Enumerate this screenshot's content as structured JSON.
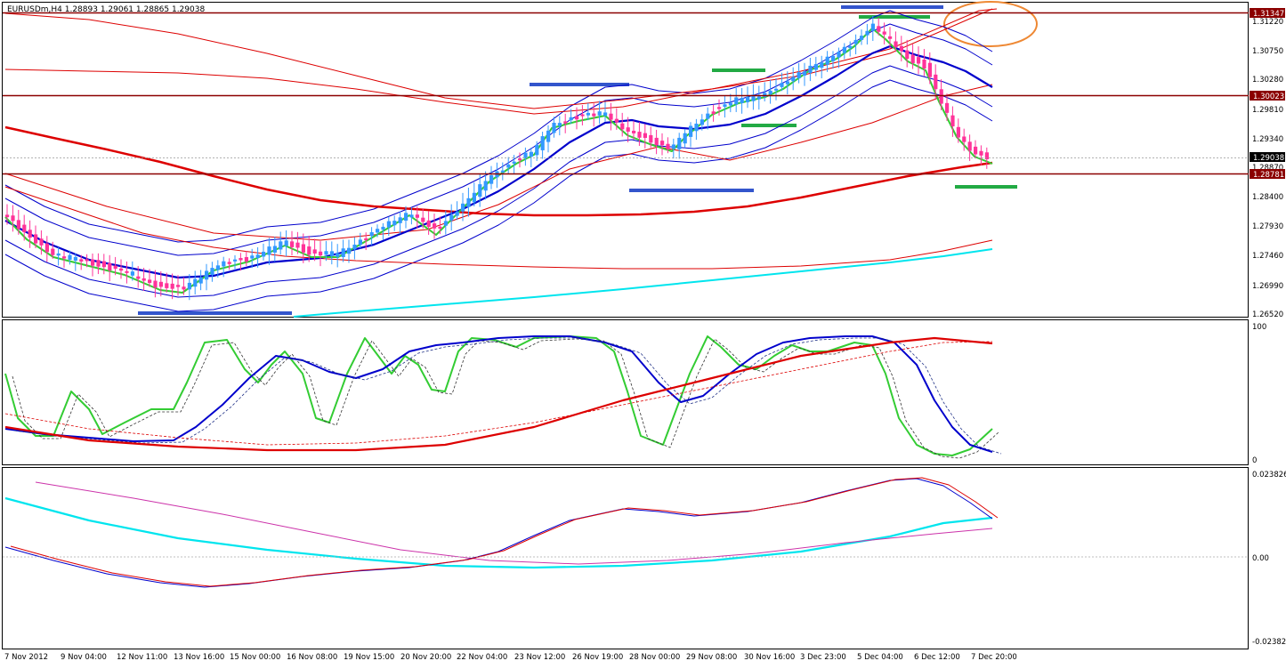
{
  "header": {
    "symbol_info": "EURUSDm,H4  1.28893 1.29061 1.28865 1.29038"
  },
  "main_panel": {
    "price_labels": [
      "1.31220",
      "1.30750",
      "1.30280",
      "1.29810",
      "1.29340",
      "1.28870",
      "1.28400",
      "1.27930",
      "1.27460",
      "1.26990",
      "1.26520"
    ],
    "hlines": [
      {
        "label": "1.31347",
        "color": "#8b0000"
      },
      {
        "label": "1.30023",
        "color": "#8b0000"
      },
      {
        "label": "1.28781",
        "color": "#8b0000"
      }
    ],
    "current_price": "1.29038"
  },
  "stoch_panel": {
    "labels": [
      "100",
      "0"
    ]
  },
  "macd_panel": {
    "labels": [
      "0.023826",
      "0.00",
      "-0.02382"
    ]
  },
  "time_labels": [
    "7 Nov 2012",
    "9 Nov 04:00",
    "12 Nov 11:00",
    "13 Nov 16:00",
    "15 Nov 00:00",
    "16 Nov 08:00",
    "19 Nov 15:00",
    "20 Nov 20:00",
    "22 Nov 04:00",
    "23 Nov 12:00",
    "26 Nov 19:00",
    "28 Nov 00:00",
    "29 Nov 08:00",
    "30 Nov 16:00",
    "3 Dec 23:00",
    "5 Dec 04:00",
    "6 Dec 12:00",
    "7 Dec 20:00"
  ],
  "colors": {
    "bull": "#3399ff",
    "bear": "#ff3399",
    "ema_green": "#33cc33",
    "ema_blue": "#0000cc",
    "ma_red": "#dd0000",
    "cyan": "#00e5ee",
    "magenta": "#cc33aa",
    "hline": "#8b0000",
    "annot_blue": "#3355cc",
    "annot_green": "#22aa44",
    "annot_orange": "#ee8833"
  }
}
